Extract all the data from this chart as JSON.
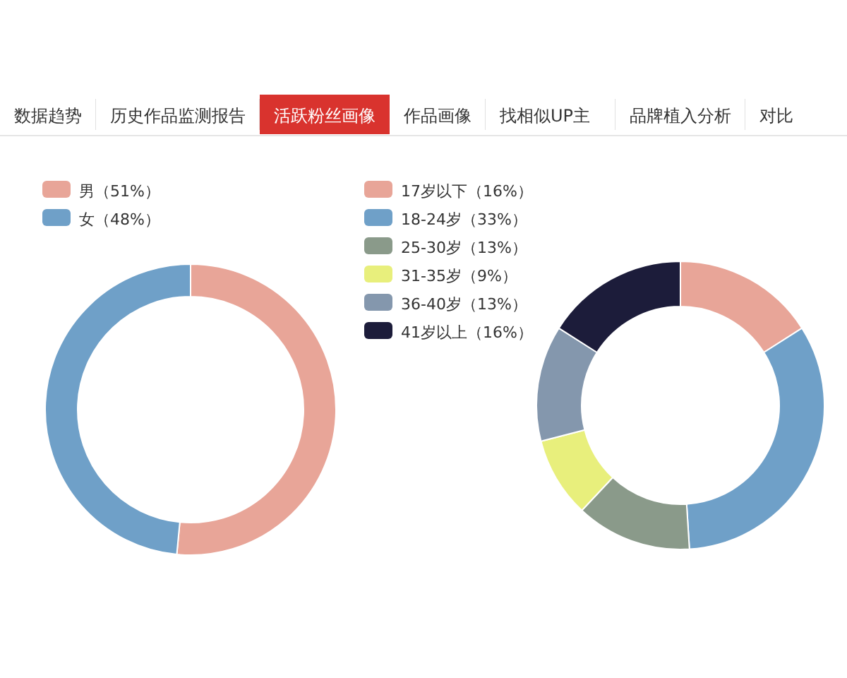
{
  "chart_data": [
    {
      "type": "other",
      "categories": [
        "数据趋势",
        "历史作品监测报告",
        "活跃粉丝画像",
        "作品画像",
        "找相似UP主",
        "品牌植入分析",
        "对比"
      ],
      "colors": [
        "#ffffff",
        "#ffffff",
        "#d9332e",
        "#ffffff",
        "#ffffff",
        "#ffffff",
        "#ffffff"
      ]
    },
    {
      "type": "donut",
      "categories": [
        "男（51%）",
        "女（48%）"
      ],
      "values": [
        51,
        48
      ],
      "colors": [
        "#e8a598",
        "#6fa0c8"
      ],
      "legend": "top left"
    },
    {
      "type": "donut",
      "categories": [
        "17岁以下（16%）",
        "18-24岁（33%）",
        "25-30岁（13%）",
        "31-35岁（9%）",
        "36-40岁（13%）",
        "41岁以上（16%）"
      ],
      "values": [
        16,
        33,
        13,
        9,
        13,
        16
      ],
      "colors": [
        "#e8a598",
        "#6fa0c8",
        "#8a9a8a",
        "#e8ef7c",
        "#8497ad",
        "#1c1c3a"
      ],
      "legend": "top left"
    }
  ]
}
